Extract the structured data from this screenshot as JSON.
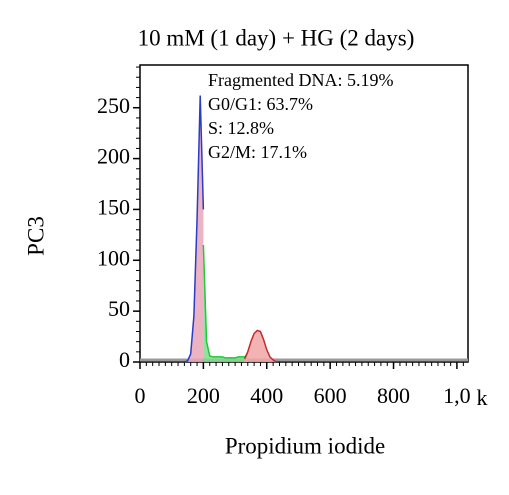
{
  "chart_data": {
    "type": "area",
    "title": "10 mM (1 day) + HG (2 days)",
    "y_label": "PC3",
    "x_label": "Propidium iodide",
    "x_unit_label": "k",
    "annotations": [
      "Fragmented DNA: 5.19%",
      "G0/G1: 63.7%",
      "S: 12.8%",
      "G2/M: 17.1%"
    ],
    "x": [
      140,
      150,
      160,
      170,
      180,
      190,
      200,
      210,
      220,
      230,
      240,
      250,
      260,
      270,
      280,
      290,
      300,
      310,
      320,
      330,
      340,
      350,
      360,
      370,
      380,
      390,
      400,
      410,
      420,
      430
    ],
    "series": [
      {
        "color": "#2a3cc8",
        "fill": "#e9a6b8",
        "values": [
          0,
          1,
          8,
          45,
          140,
          262,
          150,
          null,
          null,
          null,
          null,
          null,
          null,
          null,
          null,
          null,
          null,
          null,
          null,
          null,
          null,
          null,
          null,
          null,
          null,
          null,
          null,
          null,
          null,
          null
        ]
      },
      {
        "color": "#22c83c",
        "fill": "#7fdc8c",
        "values": [
          null,
          null,
          null,
          null,
          null,
          null,
          115,
          20,
          6,
          5,
          5,
          5,
          5,
          4,
          4,
          4,
          4,
          5,
          5,
          5,
          8,
          null,
          null,
          null,
          null,
          null,
          null,
          null,
          null,
          null
        ]
      },
      {
        "color": "#c42a2a",
        "fill": "#f2a6a6",
        "values": [
          null,
          null,
          null,
          null,
          null,
          null,
          null,
          null,
          null,
          null,
          null,
          null,
          null,
          null,
          null,
          null,
          null,
          null,
          null,
          3,
          10,
          20,
          28,
          31,
          30,
          22,
          12,
          5,
          2,
          0
        ]
      }
    ],
    "xlim": [
      0,
      1035
    ],
    "ylim": [
      0,
      292
    ],
    "xticks": [
      0,
      200,
      400,
      600,
      800,
      {
        "value": 1000,
        "label": "1,0"
      }
    ],
    "yticks": [
      0,
      50,
      100,
      150,
      200,
      250
    ]
  }
}
